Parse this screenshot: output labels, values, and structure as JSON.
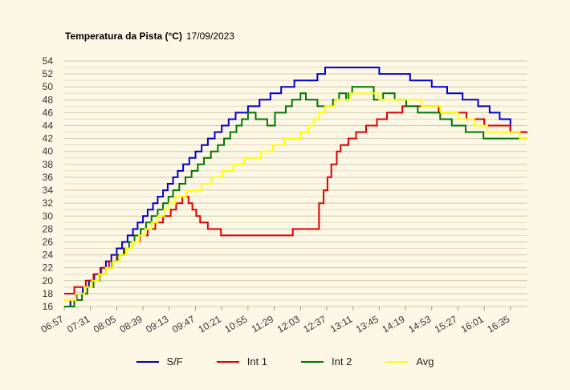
{
  "chart_data": {
    "type": "line",
    "title": "Temperatura da Pista (°C)",
    "subtitle": "17/09/2023",
    "xlabel": "",
    "ylabel": "",
    "ylim": [
      16,
      54
    ],
    "yticks": [
      16,
      18,
      20,
      22,
      24,
      26,
      28,
      30,
      32,
      34,
      36,
      38,
      40,
      42,
      44,
      46,
      48,
      50,
      52,
      54
    ],
    "x_ticks": [
      "06:57",
      "07:31",
      "08:05",
      "08:39",
      "09:13",
      "09:47",
      "10:21",
      "10:55",
      "11:29",
      "12:03",
      "12:37",
      "13:11",
      "13:45",
      "14:19",
      "14:53",
      "15:27",
      "16:01",
      "16:35"
    ],
    "grid": true,
    "legend_position": "bottom",
    "series": [
      {
        "name": "S/F",
        "color": "#0000cc",
        "points": [
          [
            "06:57",
            16
          ],
          [
            "07:05",
            17
          ],
          [
            "07:13",
            18
          ],
          [
            "07:21",
            19
          ],
          [
            "07:29",
            20
          ],
          [
            "07:36",
            21
          ],
          [
            "07:44",
            22
          ],
          [
            "07:51",
            23
          ],
          [
            "07:58",
            24
          ],
          [
            "08:05",
            25
          ],
          [
            "08:12",
            26
          ],
          [
            "08:19",
            27
          ],
          [
            "08:26",
            28
          ],
          [
            "08:32",
            29
          ],
          [
            "08:39",
            30
          ],
          [
            "08:45",
            31
          ],
          [
            "08:52",
            32
          ],
          [
            "08:58",
            33
          ],
          [
            "09:05",
            34
          ],
          [
            "09:11",
            35
          ],
          [
            "09:18",
            36
          ],
          [
            "09:24",
            37
          ],
          [
            "09:31",
            38
          ],
          [
            "09:39",
            39
          ],
          [
            "09:47",
            40
          ],
          [
            "09:55",
            41
          ],
          [
            "10:03",
            42
          ],
          [
            "10:12",
            43
          ],
          [
            "10:21",
            44
          ],
          [
            "10:30",
            45
          ],
          [
            "10:39",
            46
          ],
          [
            "10:55",
            47
          ],
          [
            "11:10",
            48
          ],
          [
            "11:24",
            49
          ],
          [
            "11:38",
            50
          ],
          [
            "11:55",
            51
          ],
          [
            "12:25",
            52
          ],
          [
            "12:35",
            53
          ],
          [
            "13:45",
            52
          ],
          [
            "14:25",
            51
          ],
          [
            "14:53",
            50
          ],
          [
            "15:13",
            49
          ],
          [
            "15:33",
            48
          ],
          [
            "15:53",
            47
          ],
          [
            "16:08",
            46
          ],
          [
            "16:21",
            45
          ],
          [
            "16:35",
            43
          ],
          [
            "16:47",
            43
          ]
        ]
      },
      {
        "name": "Int 1",
        "color": "#dd0000",
        "points": [
          [
            "06:57",
            18
          ],
          [
            "07:10",
            19
          ],
          [
            "07:25",
            20
          ],
          [
            "07:35",
            21
          ],
          [
            "07:45",
            22
          ],
          [
            "07:55",
            23
          ],
          [
            "08:05",
            24
          ],
          [
            "08:15",
            25
          ],
          [
            "08:25",
            26
          ],
          [
            "08:35",
            27
          ],
          [
            "08:45",
            28
          ],
          [
            "08:55",
            29
          ],
          [
            "09:05",
            30
          ],
          [
            "09:15",
            31
          ],
          [
            "09:22",
            32
          ],
          [
            "09:30",
            33
          ],
          [
            "09:38",
            32
          ],
          [
            "09:43",
            31
          ],
          [
            "09:48",
            30
          ],
          [
            "09:53",
            29
          ],
          [
            "10:03",
            28
          ],
          [
            "10:20",
            27
          ],
          [
            "10:47",
            27
          ],
          [
            "11:53",
            28
          ],
          [
            "12:10",
            28
          ],
          [
            "12:27",
            32
          ],
          [
            "12:33",
            34
          ],
          [
            "12:38",
            36
          ],
          [
            "12:43",
            38
          ],
          [
            "12:50",
            40
          ],
          [
            "12:55",
            41
          ],
          [
            "13:05",
            42
          ],
          [
            "13:15",
            43
          ],
          [
            "13:28",
            44
          ],
          [
            "13:42",
            45
          ],
          [
            "13:55",
            46
          ],
          [
            "14:15",
            47
          ],
          [
            "14:53",
            47
          ],
          [
            "15:02",
            46
          ],
          [
            "15:22",
            46
          ],
          [
            "15:38",
            45
          ],
          [
            "16:01",
            44
          ],
          [
            "16:35",
            43
          ],
          [
            "16:47",
            43
          ]
        ]
      },
      {
        "name": "Int 2",
        "color": "#007700",
        "points": [
          [
            "06:57",
            16
          ],
          [
            "07:10",
            17
          ],
          [
            "07:20",
            18
          ],
          [
            "07:27",
            19
          ],
          [
            "07:35",
            20
          ],
          [
            "07:43",
            21
          ],
          [
            "07:51",
            22
          ],
          [
            "07:59",
            23
          ],
          [
            "08:06",
            24
          ],
          [
            "08:14",
            25
          ],
          [
            "08:21",
            26
          ],
          [
            "08:28",
            27
          ],
          [
            "08:36",
            28
          ],
          [
            "08:43",
            29
          ],
          [
            "08:50",
            30
          ],
          [
            "08:58",
            31
          ],
          [
            "09:05",
            32
          ],
          [
            "09:12",
            33
          ],
          [
            "09:18",
            34
          ],
          [
            "09:26",
            35
          ],
          [
            "09:34",
            36
          ],
          [
            "09:42",
            37
          ],
          [
            "09:50",
            38
          ],
          [
            "09:58",
            39
          ],
          [
            "10:07",
            40
          ],
          [
            "10:16",
            41
          ],
          [
            "10:24",
            42
          ],
          [
            "10:32",
            43
          ],
          [
            "10:40",
            44
          ],
          [
            "10:47",
            45
          ],
          [
            "10:55",
            46
          ],
          [
            "11:05",
            45
          ],
          [
            "11:20",
            44
          ],
          [
            "11:30",
            46
          ],
          [
            "11:44",
            47
          ],
          [
            "11:52",
            48
          ],
          [
            "12:03",
            49
          ],
          [
            "12:10",
            48
          ],
          [
            "12:25",
            47
          ],
          [
            "12:45",
            48
          ],
          [
            "12:53",
            49
          ],
          [
            "13:02",
            48
          ],
          [
            "13:05",
            49
          ],
          [
            "13:10",
            50
          ],
          [
            "13:38",
            48
          ],
          [
            "13:44",
            48
          ],
          [
            "13:50",
            49
          ],
          [
            "14:05",
            48
          ],
          [
            "14:20",
            47
          ],
          [
            "14:35",
            46
          ],
          [
            "14:50",
            46
          ],
          [
            "15:04",
            45
          ],
          [
            "15:19",
            44
          ],
          [
            "15:37",
            43
          ],
          [
            "16:00",
            42
          ],
          [
            "16:25",
            42
          ],
          [
            "16:47",
            42
          ]
        ]
      },
      {
        "name": "Avg",
        "color": "#ffff00",
        "points": [
          [
            "06:57",
            17
          ],
          [
            "07:12",
            18
          ],
          [
            "07:23",
            19
          ],
          [
            "07:33",
            20
          ],
          [
            "07:42",
            21
          ],
          [
            "07:51",
            22
          ],
          [
            "08:00",
            23
          ],
          [
            "08:09",
            24
          ],
          [
            "08:17",
            25
          ],
          [
            "08:25",
            26
          ],
          [
            "08:34",
            27
          ],
          [
            "08:42",
            28
          ],
          [
            "08:50",
            29
          ],
          [
            "08:58",
            30
          ],
          [
            "09:06",
            31
          ],
          [
            "09:13",
            32
          ],
          [
            "09:21",
            33
          ],
          [
            "09:35",
            34
          ],
          [
            "09:55",
            35
          ],
          [
            "10:08",
            36
          ],
          [
            "10:22",
            37
          ],
          [
            "10:36",
            38
          ],
          [
            "10:50",
            39
          ],
          [
            "11:12",
            40
          ],
          [
            "11:27",
            41
          ],
          [
            "11:42",
            42
          ],
          [
            "12:03",
            43
          ],
          [
            "12:13",
            44
          ],
          [
            "12:20",
            45
          ],
          [
            "12:27",
            46
          ],
          [
            "12:35",
            47
          ],
          [
            "12:48",
            48
          ],
          [
            "13:07",
            49
          ],
          [
            "13:45",
            48
          ],
          [
            "14:10",
            48
          ],
          [
            "14:40",
            47
          ],
          [
            "15:05",
            46
          ],
          [
            "15:27",
            45
          ],
          [
            "15:48",
            44
          ],
          [
            "16:05",
            43
          ],
          [
            "16:47",
            42
          ]
        ]
      }
    ]
  }
}
